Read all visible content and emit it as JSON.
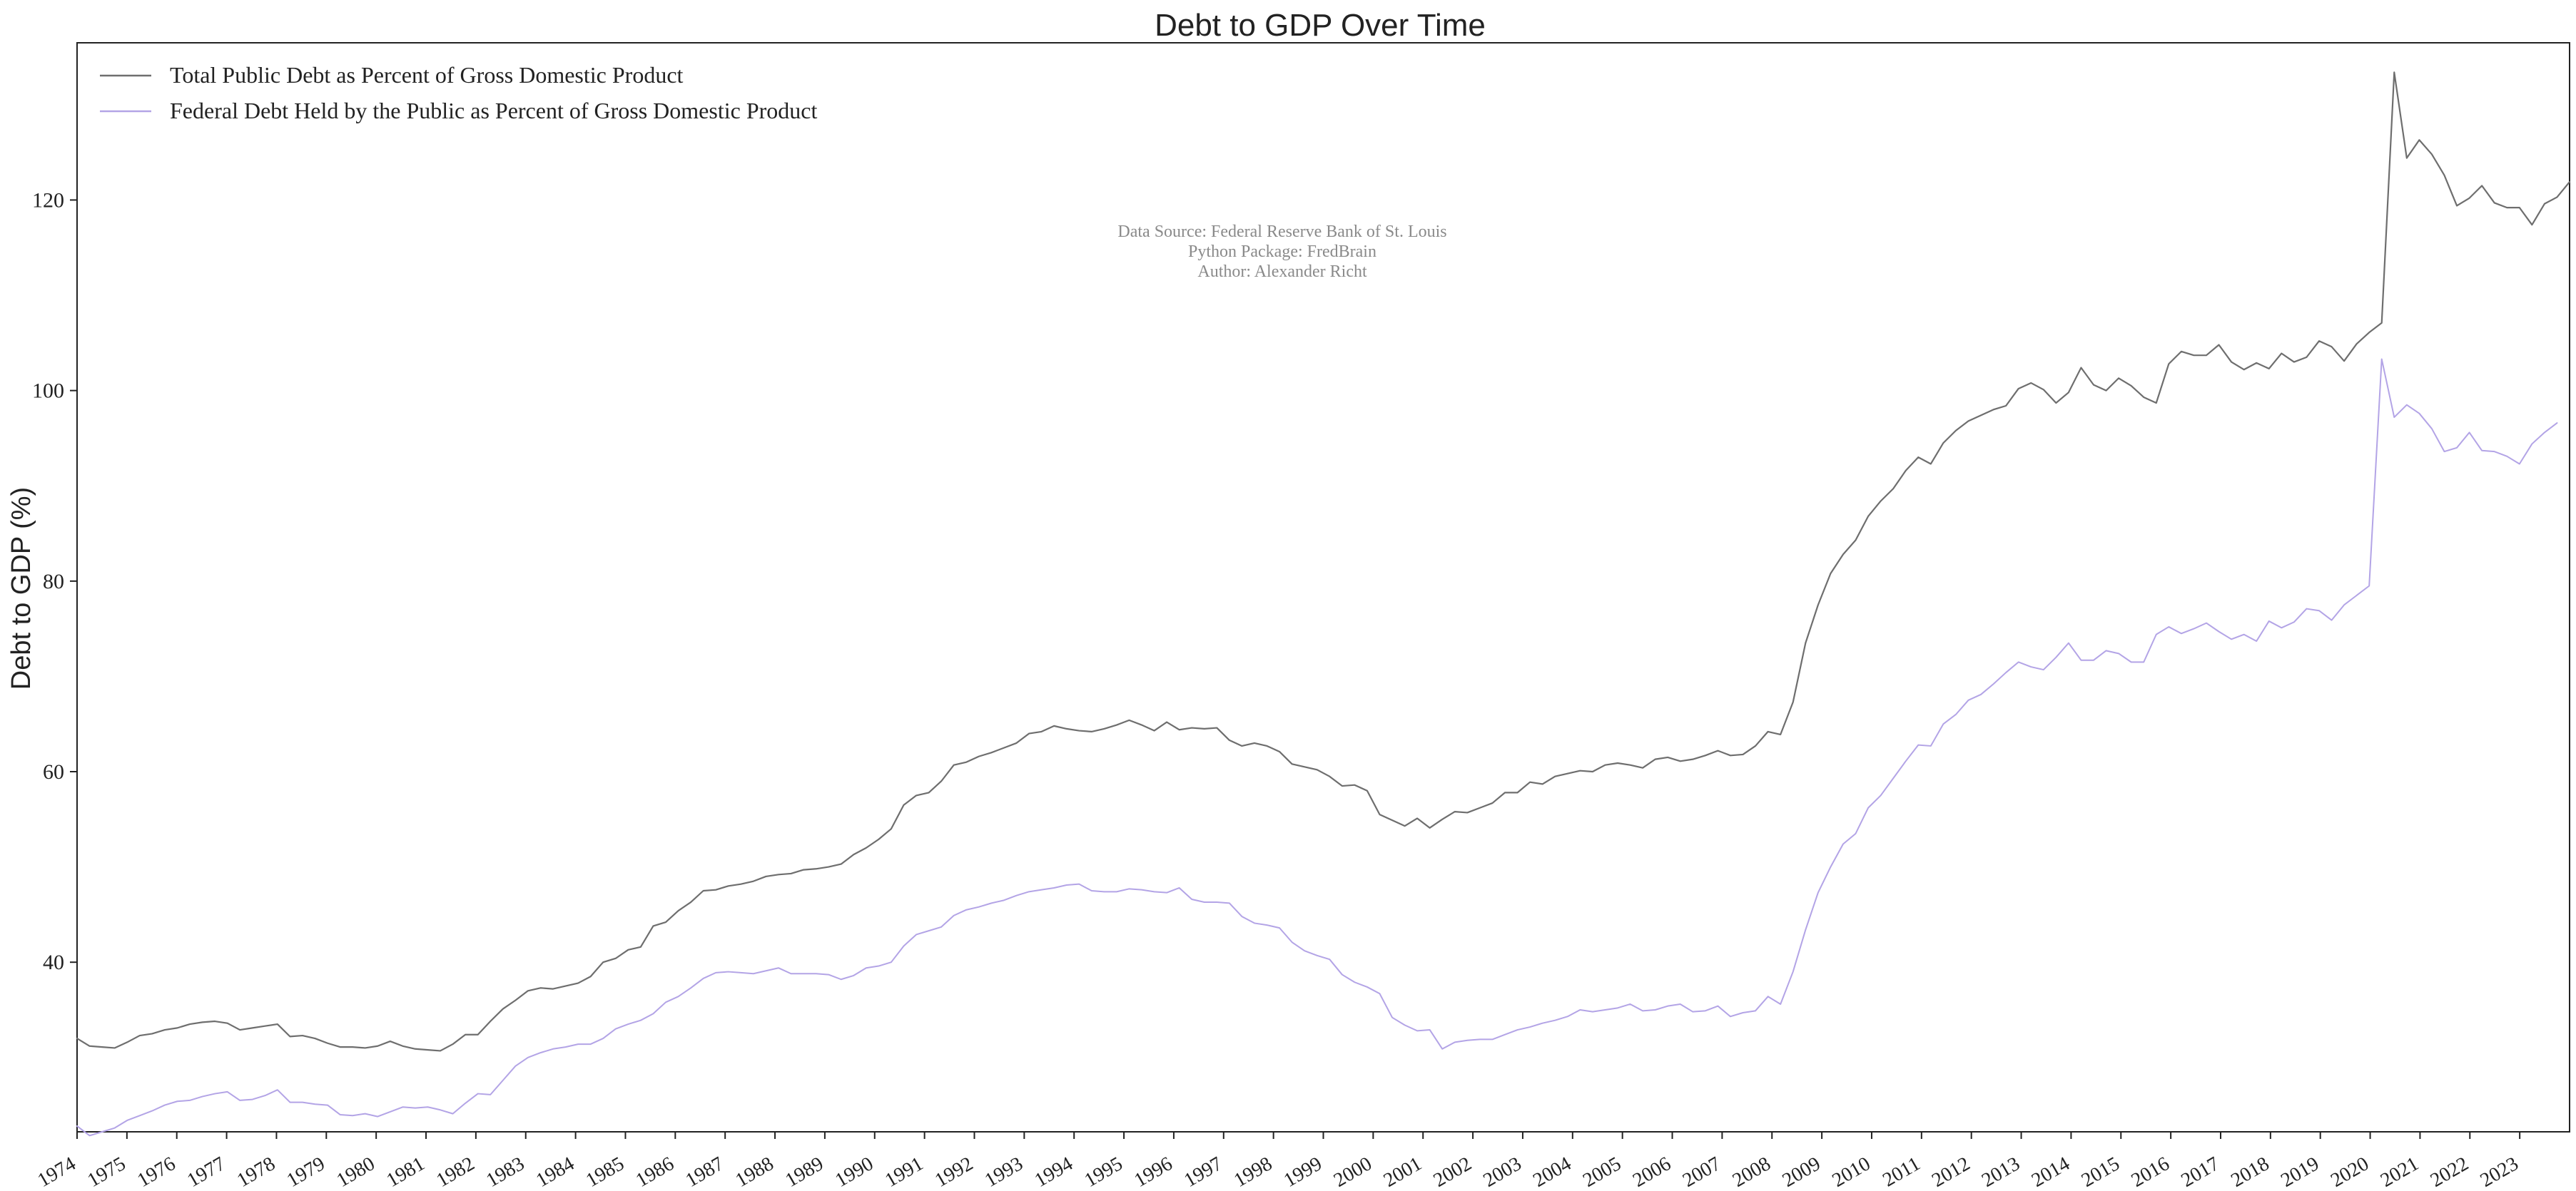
{
  "chart_data": {
    "type": "line",
    "title": "Debt to GDP Over Time",
    "xlabel": "",
    "ylabel": "Debt to GDP (%)",
    "x_start": 1974,
    "x_end": 2024,
    "xlim": [
      1974,
      2024
    ],
    "ylim": [
      22.2,
      136.5
    ],
    "x_ticks": [
      "1974",
      "1975",
      "1976",
      "1977",
      "1978",
      "1979",
      "1980",
      "1981",
      "1982",
      "1983",
      "1984",
      "1985",
      "1986",
      "1987",
      "1988",
      "1989",
      "1990",
      "1991",
      "1992",
      "1993",
      "1994",
      "1995",
      "1996",
      "1997",
      "1998",
      "1999",
      "2000",
      "2001",
      "2002",
      "2003",
      "2004",
      "2005",
      "2006",
      "2007",
      "2008",
      "2009",
      "2010",
      "2011",
      "2012",
      "2013",
      "2014",
      "2015",
      "2016",
      "2017",
      "2018",
      "2019",
      "2020",
      "2021",
      "2022",
      "2023"
    ],
    "y_ticks": [
      40,
      60,
      80,
      100,
      120
    ],
    "grid": false,
    "legend_position": "top-left",
    "annotation": [
      "Data Source: Federal Reserve Bank of St. Louis",
      "Python Package: FredBrain",
      "Author: Alexander Richt"
    ],
    "series": [
      {
        "name": "Total Public Debt as Percent of Gross Domestic Product",
        "color": "#6e6e6e",
        "values": [
          32,
          31.2,
          31.1,
          31,
          31.6,
          32.3,
          32.5,
          32.9,
          33.1,
          33.5,
          33.7,
          33.8,
          33.6,
          32.9,
          33.1,
          33.3,
          33.5,
          32.2,
          32.3,
          32,
          31.5,
          31.1,
          31.1,
          31,
          31.2,
          31.7,
          31.2,
          30.9,
          30.8,
          30.7,
          31.4,
          32.4,
          32.4,
          33.8,
          35.1,
          36,
          37,
          37.3,
          37.2,
          37.5,
          37.8,
          38.5,
          40,
          40.4,
          41.3,
          41.6,
          43.8,
          44.2,
          45.4,
          46.3,
          47.5,
          47.6,
          48,
          48.2,
          48.5,
          49,
          49.2,
          49.3,
          49.7,
          49.8,
          50,
          50.3,
          51.3,
          52,
          52.9,
          54,
          56.5,
          57.5,
          57.8,
          59,
          60.7,
          61,
          61.6,
          62,
          62.5,
          63,
          64,
          64.2,
          64.8,
          64.5,
          64.3,
          64.2,
          64.5,
          64.9,
          65.4,
          64.9,
          64.3,
          65.2,
          64.4,
          64.6,
          64.5,
          64.6,
          63.3,
          62.7,
          63,
          62.7,
          62.1,
          60.8,
          60.5,
          60.2,
          59.5,
          58.5,
          58.6,
          58,
          55.5,
          54.9,
          54.3,
          55.1,
          54.1,
          55,
          55.8,
          55.7,
          56.2,
          56.7,
          57.8,
          57.8,
          58.9,
          58.7,
          59.5,
          59.8,
          60.1,
          60,
          60.7,
          60.9,
          60.7,
          60.4,
          61.3,
          61.5,
          61.1,
          61.3,
          61.7,
          62.2,
          61.7,
          61.8,
          62.7,
          64.2,
          63.9,
          67.3,
          73.5,
          77.5,
          80.8,
          82.8,
          84.3,
          86.8,
          88.4,
          89.7,
          91.6,
          93,
          92.3,
          94.5,
          95.8,
          96.8,
          97.4,
          98,
          98.4,
          100.2,
          100.8,
          100.1,
          98.7,
          99.8,
          102.4,
          100.6,
          100,
          101.3,
          100.5,
          99.3,
          98.7,
          102.8,
          104.1,
          103.7,
          103.7,
          104.8,
          103,
          102.2,
          102.9,
          102.3,
          103.9,
          103,
          103.5,
          105.2,
          104.6,
          103.1,
          104.9,
          106.1,
          107.1,
          133.4,
          124.4,
          126.3,
          124.8,
          122.6,
          119.4,
          120.2,
          121.5,
          119.7,
          119.2,
          119.2,
          117.4,
          119.6,
          120.3,
          121.9
        ]
      },
      {
        "name": "Federal Debt Held by the Public as Percent of Gross Domestic Product",
        "color": "#b3a4e6",
        "values": [
          22.8,
          21.8,
          22.2,
          22.6,
          23.4,
          23.9,
          24.4,
          25,
          25.4,
          25.5,
          25.9,
          26.2,
          26.4,
          25.5,
          25.6,
          26,
          26.6,
          25.3,
          25.3,
          25.1,
          25,
          24,
          23.9,
          24.1,
          23.8,
          24.3,
          24.8,
          24.7,
          24.8,
          24.5,
          24.1,
          25.2,
          26.2,
          26.1,
          27.6,
          29.1,
          30,
          30.5,
          30.9,
          31.1,
          31.4,
          31.4,
          32,
          33,
          33.5,
          33.9,
          34.6,
          35.8,
          36.4,
          37.3,
          38.3,
          38.9,
          39,
          38.9,
          38.8,
          39.1,
          39.4,
          38.8,
          38.8,
          38.8,
          38.7,
          38.2,
          38.6,
          39.4,
          39.6,
          40,
          41.7,
          42.9,
          43.3,
          43.7,
          44.9,
          45.5,
          45.8,
          46.2,
          46.5,
          47,
          47.4,
          47.6,
          47.8,
          48.1,
          48.2,
          47.5,
          47.4,
          47.4,
          47.7,
          47.6,
          47.4,
          47.3,
          47.8,
          46.6,
          46.3,
          46.3,
          46.2,
          44.8,
          44.1,
          43.9,
          43.6,
          42.1,
          41.2,
          40.7,
          40.3,
          38.7,
          37.9,
          37.4,
          36.7,
          34.2,
          33.4,
          32.8,
          32.9,
          30.9,
          31.6,
          31.8,
          31.9,
          31.9,
          32.4,
          32.9,
          33.2,
          33.6,
          33.9,
          34.3,
          35,
          34.8,
          35,
          35.2,
          35.6,
          34.9,
          35,
          35.4,
          35.6,
          34.8,
          34.9,
          35.4,
          34.3,
          34.7,
          34.9,
          36.4,
          35.6,
          39,
          43.4,
          47.3,
          50,
          52.4,
          53.5,
          56.2,
          57.5,
          59.3,
          61.1,
          62.8,
          62.7,
          65,
          66,
          67.5,
          68.1,
          69.2,
          70.4,
          71.5,
          71,
          70.7,
          72,
          73.5,
          71.7,
          71.7,
          72.7,
          72.4,
          71.5,
          71.5,
          74.4,
          75.2,
          74.5,
          75,
          75.6,
          74.7,
          73.9,
          74.4,
          73.7,
          75.8,
          75.1,
          75.7,
          77.1,
          76.9,
          75.9,
          77.5,
          78.5,
          79.5,
          103.3,
          97.2,
          98.5,
          97.6,
          96,
          93.6,
          94,
          95.6,
          93.7,
          93.6,
          93.1,
          92.3,
          94.4,
          95.6,
          96.6
        ]
      }
    ]
  }
}
